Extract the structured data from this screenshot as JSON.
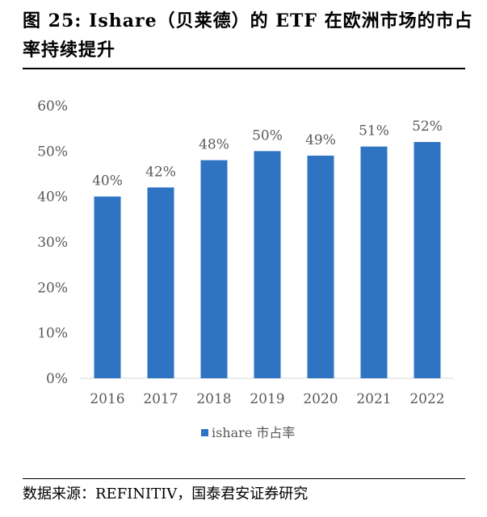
{
  "figure": {
    "title": "图 25: Ishare（贝莱德）的 ETF 在欧洲市场的市占率持续提升",
    "source": "数据来源：REFINITIV，国泰君安证券研究"
  },
  "colors": {
    "bar": "#2e74c3",
    "axis": "#d9d9d9",
    "text": "#595959"
  },
  "chart_data": {
    "type": "bar",
    "title": "",
    "categories": [
      "2016",
      "2017",
      "2018",
      "2019",
      "2020",
      "2021",
      "2022"
    ],
    "series": [
      {
        "name": "ishare 市占率",
        "values": [
          40,
          42,
          48,
          50,
          49,
          51,
          52
        ]
      }
    ],
    "data_labels": [
      "40%",
      "42%",
      "48%",
      "50%",
      "49%",
      "51%",
      "52%"
    ],
    "y_ticks": [
      "0%",
      "10%",
      "20%",
      "30%",
      "40%",
      "50%",
      "60%"
    ],
    "ylim": [
      0,
      60
    ],
    "xlabel": "",
    "ylabel": "",
    "grid": false,
    "legend": "bottom-center"
  }
}
